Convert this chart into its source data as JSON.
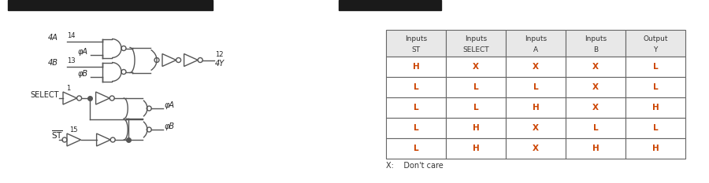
{
  "fig_width": 9.0,
  "fig_height": 2.33,
  "dpi": 100,
  "bg_color": "#ffffff",
  "banner_color": "#1a1a1a",
  "table_headers_line1": [
    "Inputs",
    "Inputs",
    "Inputs",
    "Inputs",
    "Output"
  ],
  "table_headers_line2": [
    "ST",
    "SELECT",
    "A",
    "B",
    "Y"
  ],
  "table_rows": [
    [
      "H",
      "X",
      "X",
      "X",
      "L"
    ],
    [
      "L",
      "L",
      "L",
      "X",
      "L"
    ],
    [
      "L",
      "L",
      "H",
      "X",
      "H"
    ],
    [
      "L",
      "H",
      "X",
      "L",
      "L"
    ],
    [
      "L",
      "H",
      "X",
      "H",
      "H"
    ]
  ],
  "note_text": "X:    Don't care",
  "header_bg": "#e8e8e8",
  "table_line_color": "#666666",
  "circuit_color": "#555555",
  "circuit_text_color": "#222222",
  "data_color_HL": "#cc4400",
  "data_color_normal": "#333333"
}
